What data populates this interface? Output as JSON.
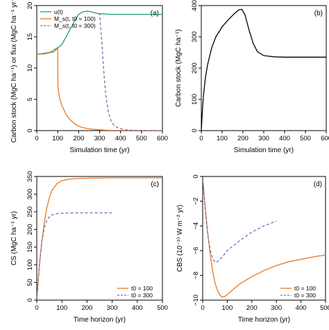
{
  "colors": {
    "green": "#1a9e77",
    "orange": "#e87722",
    "purple": "#7570b3",
    "black": "#000000"
  },
  "chart_data": [
    {
      "panel": "(a)",
      "type": "line",
      "xlabel": "Simulation time (yr)",
      "ylabel": "Carbon stock (MgC ha⁻¹) or flux (MgC ha⁻¹ yr⁻¹)",
      "xlim": [
        0,
        600
      ],
      "ylim": [
        0,
        20
      ],
      "xticks": [
        0,
        100,
        200,
        300,
        400,
        500,
        600
      ],
      "yticks": [
        0,
        5,
        10,
        15,
        20
      ],
      "legend": {
        "placement": "top-left"
      },
      "series": [
        {
          "name": "u(t)",
          "color_key": "green",
          "dash": false,
          "x": [
            0,
            40,
            80,
            120,
            150,
            180,
            200,
            220,
            240,
            260,
            280,
            300,
            350,
            400,
            450,
            500,
            550,
            600
          ],
          "y": [
            12.2,
            12.3,
            12.6,
            13.8,
            15.6,
            17.5,
            18.6,
            19.0,
            19.1,
            19.0,
            18.8,
            18.7,
            18.6,
            18.6,
            18.6,
            18.6,
            18.6,
            18.6
          ]
        },
        {
          "name": "M_s(t, t0 = 100)",
          "color_key": "orange",
          "dash": false,
          "x": [
            0,
            60,
            95,
            100,
            101,
            103,
            110,
            120,
            140,
            160,
            180,
            200,
            230,
            260,
            300,
            350,
            400,
            500,
            600
          ],
          "y": [
            12.2,
            12.5,
            13.2,
            13.3,
            7.2,
            6.3,
            5.1,
            4.0,
            2.6,
            1.7,
            1.1,
            0.7,
            0.4,
            0.25,
            0.12,
            0.05,
            0.02,
            0.0,
            0.0
          ]
        },
        {
          "name": "M_s(t, t0 = 300)",
          "color_key": "purple",
          "dash": true,
          "x": [
            295,
            300,
            301,
            310,
            320,
            330,
            340,
            355,
            370,
            390,
            420,
            460,
            500,
            600
          ],
          "y": [
            18.7,
            18.7,
            18.3,
            14.5,
            9.5,
            5.5,
            3.2,
            1.5,
            0.8,
            0.4,
            0.15,
            0.05,
            0.02,
            0.0
          ]
        }
      ]
    },
    {
      "panel": "(b)",
      "type": "line",
      "xlabel": "Simulation time (yr)",
      "ylabel": "Carbon stock (MgC ha⁻¹)",
      "xlim": [
        0,
        600
      ],
      "ylim": [
        0,
        400
      ],
      "xticks": [
        0,
        100,
        200,
        300,
        400,
        500,
        600
      ],
      "yticks": [
        0,
        100,
        200,
        300,
        400
      ],
      "series": [
        {
          "color_key": "black",
          "dash": false,
          "x": [
            0,
            5,
            10,
            20,
            30,
            50,
            70,
            100,
            130,
            160,
            180,
            195,
            210,
            230,
            250,
            270,
            300,
            350,
            400,
            500,
            600
          ],
          "y": [
            0,
            60,
            110,
            170,
            210,
            265,
            300,
            332,
            355,
            375,
            386,
            388,
            370,
            320,
            278,
            252,
            240,
            236,
            235,
            235,
            235
          ]
        }
      ]
    },
    {
      "panel": "(c)",
      "type": "line",
      "xlabel": "Time horizon (yr)",
      "ylabel": "CS (MgC ha⁻¹ yr)",
      "xlim": [
        0,
        500
      ],
      "ylim": [
        0,
        350
      ],
      "xticks": [
        0,
        100,
        200,
        300,
        400,
        500
      ],
      "yticks": [
        0,
        50,
        100,
        150,
        200,
        250,
        300,
        350
      ],
      "legend": {
        "placement": "bottom-right"
      },
      "series": [
        {
          "name": "t0 = 100",
          "color_key": "orange",
          "dash": false,
          "x": [
            0,
            5,
            10,
            20,
            30,
            40,
            50,
            60,
            80,
            100,
            125,
            150,
            200,
            300,
            400,
            500
          ],
          "y": [
            0,
            48,
            92,
            165,
            220,
            262,
            290,
            310,
            330,
            338,
            342,
            344,
            345,
            346,
            346,
            346
          ]
        },
        {
          "name": "t0 = 300",
          "color_key": "purple",
          "dash": true,
          "x": [
            0,
            5,
            10,
            20,
            30,
            40,
            50,
            60,
            80,
            100,
            150,
            200,
            300
          ],
          "y": [
            0,
            52,
            98,
            165,
            205,
            226,
            236,
            241,
            245,
            246,
            247,
            247,
            247
          ]
        }
      ]
    },
    {
      "panel": "(d)",
      "type": "line",
      "xlabel": "Time horizon (yr)",
      "ylabel": "CBS (10⁻¹⁰ W m⁻² yr)",
      "xlim": [
        0,
        500
      ],
      "ylim": [
        -10,
        0
      ],
      "xticks": [
        0,
        100,
        200,
        300,
        400,
        500
      ],
      "yticks": [
        0,
        -2,
        -4,
        -6,
        -8,
        -10
      ],
      "legend": {
        "placement": "bottom-right"
      },
      "series": [
        {
          "name": "t0 = 100",
          "color_key": "orange",
          "dash": false,
          "x": [
            0,
            5,
            10,
            20,
            30,
            40,
            50,
            60,
            70,
            80,
            90,
            100,
            120,
            150,
            200,
            250,
            300,
            350,
            400,
            450,
            500
          ],
          "y": [
            -0.1,
            -1.2,
            -2.4,
            -4.5,
            -6.2,
            -7.6,
            -8.6,
            -9.2,
            -9.6,
            -9.75,
            -9.7,
            -9.55,
            -9.2,
            -8.7,
            -8.1,
            -7.6,
            -7.2,
            -6.9,
            -6.7,
            -6.5,
            -6.35
          ]
        },
        {
          "name": "t0 = 300",
          "color_key": "purple",
          "dash": true,
          "x": [
            0,
            5,
            10,
            20,
            30,
            40,
            50,
            60,
            80,
            100,
            150,
            200,
            250,
            300
          ],
          "y": [
            -0.1,
            -1.3,
            -2.6,
            -4.6,
            -5.9,
            -6.6,
            -6.95,
            -6.9,
            -6.5,
            -6.0,
            -5.2,
            -4.5,
            -4.0,
            -3.6
          ]
        }
      ]
    }
  ]
}
